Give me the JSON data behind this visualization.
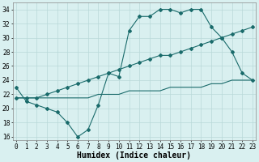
{
  "line1_x": [
    0,
    1,
    2,
    3,
    4,
    5,
    6,
    7,
    8,
    9,
    10,
    11,
    12,
    13,
    14,
    15,
    16,
    17,
    18,
    19,
    20,
    21,
    22,
    23
  ],
  "line1_y": [
    23.0,
    21.0,
    20.5,
    20.0,
    19.5,
    18.0,
    16.0,
    17.0,
    20.5,
    25.0,
    24.5,
    31.0,
    33.0,
    33.0,
    34.0,
    34.0,
    33.5,
    34.0,
    34.0,
    31.5,
    30.0,
    28.0,
    25.0,
    24.0
  ],
  "line2_x": [
    0,
    1,
    2,
    3,
    4,
    5,
    6,
    7,
    8,
    9,
    10,
    11,
    12,
    13,
    14,
    15,
    16,
    17,
    18,
    19,
    20,
    21,
    22,
    23
  ],
  "line2_y": [
    21.5,
    21.5,
    21.5,
    22.0,
    22.5,
    23.0,
    23.5,
    24.0,
    24.5,
    25.0,
    25.5,
    26.0,
    26.5,
    27.0,
    27.5,
    27.5,
    28.0,
    28.5,
    29.0,
    29.5,
    30.0,
    30.5,
    31.0,
    31.5
  ],
  "line3_x": [
    0,
    1,
    2,
    3,
    4,
    5,
    6,
    7,
    8,
    9,
    10,
    11,
    12,
    13,
    14,
    15,
    16,
    17,
    18,
    19,
    20,
    21,
    22,
    23
  ],
  "line3_y": [
    21.5,
    21.5,
    21.5,
    21.5,
    21.5,
    21.5,
    21.5,
    21.5,
    22.0,
    22.0,
    22.0,
    22.5,
    22.5,
    22.5,
    22.5,
    23.0,
    23.0,
    23.0,
    23.0,
    23.5,
    23.5,
    24.0,
    24.0,
    24.0
  ],
  "line_color": "#1a6b6b",
  "bg_color": "#d9f0f0",
  "grid_color": "#b8d8d8",
  "xlabel": "Humidex (Indice chaleur)",
  "yticks": [
    16,
    18,
    20,
    22,
    24,
    26,
    28,
    30,
    32,
    34
  ],
  "xtick_labels": [
    "0",
    "1",
    "2",
    "3",
    "4",
    "5",
    "6",
    "7",
    "8",
    "9",
    "10",
    "11",
    "12",
    "13",
    "14",
    "15",
    "16",
    "17",
    "18",
    "19",
    "20",
    "21",
    "22",
    "23"
  ],
  "xtick_positions": [
    0,
    1,
    2,
    3,
    4,
    5,
    6,
    7,
    8,
    9,
    10,
    11,
    12,
    13,
    14,
    15,
    16,
    17,
    18,
    19,
    20,
    21,
    22,
    23
  ],
  "xlim": [
    -0.3,
    23.3
  ],
  "ylim": [
    15.5,
    35.0
  ],
  "xlabel_fontsize": 7,
  "tick_fontsize": 5.5,
  "marker": "D",
  "marker_size": 2.0,
  "linewidth": 0.8
}
